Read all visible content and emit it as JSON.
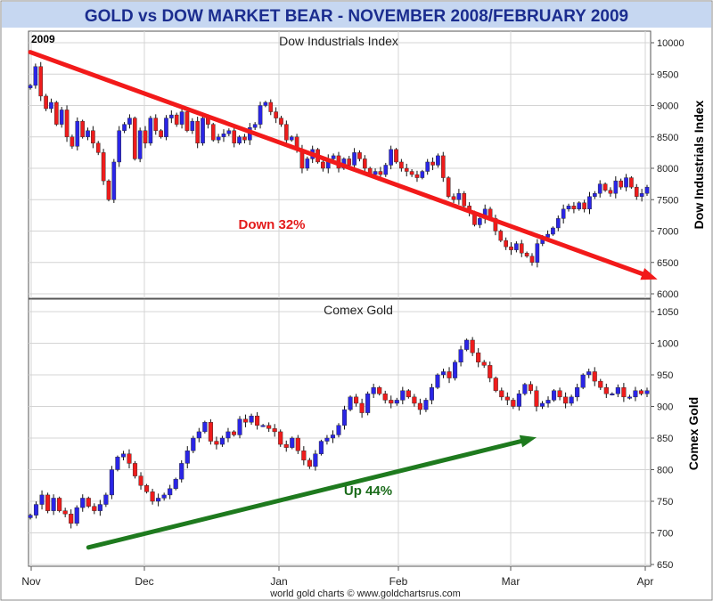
{
  "header": {
    "title": "GOLD vs DOW MARKET BEAR - NOVEMBER 2008/FEBRUARY 2009"
  },
  "footer": {
    "credit": "world gold charts © www.goldchartsrus.com"
  },
  "colors": {
    "title_bg": "#c6d7f1",
    "title_text": "#1b2d8f",
    "up_candle": "#2a25e6",
    "down_candle": "#ee1c1c",
    "dow_arrow": "#f21a1a",
    "gold_arrow": "#1e7a1e",
    "dow_annotation": "#e31b1b",
    "gold_annotation": "#1a6b1a"
  },
  "chart_data": [
    {
      "type": "candlestick",
      "title": "Dow Industrials Index",
      "year_label": "2009",
      "ylabel": "Dow Industrials Index",
      "ylim": [
        6000,
        10000
      ],
      "yticks": [
        "6000",
        "6500",
        "7000",
        "7500",
        "8000",
        "8500",
        "9000",
        "9500",
        "10000"
      ],
      "x_months": [
        "Nov",
        "Dec",
        "Jan",
        "Feb",
        "Mar",
        "Apr"
      ],
      "grid": true,
      "annotation": {
        "text": "Down 32%",
        "from": [
          0,
          9850
        ],
        "to": [
          120,
          6230
        ]
      },
      "closes": [
        9320,
        9620,
        9150,
        8950,
        9050,
        8700,
        8930,
        8500,
        8350,
        8750,
        8500,
        8600,
        8400,
        8250,
        7800,
        7500,
        8100,
        8600,
        8700,
        8800,
        8150,
        8600,
        8400,
        8800,
        8600,
        8500,
        8800,
        8850,
        8700,
        8900,
        8600,
        8750,
        8400,
        8800,
        8700,
        8450,
        8500,
        8550,
        8600,
        8400,
        8500,
        8450,
        8650,
        8700,
        9000,
        9050,
        8900,
        8800,
        8700,
        8450,
        8500,
        8300,
        8000,
        8150,
        8300,
        8100,
        8000,
        8150,
        8200,
        8000,
        8150,
        8050,
        8250,
        8150,
        8000,
        7900,
        7950,
        7900,
        8050,
        8300,
        8100,
        8000,
        7950,
        7900,
        7850,
        7950,
        8100,
        8050,
        8200,
        7850,
        7550,
        7500,
        7600,
        7400,
        7300,
        7100,
        7200,
        7350,
        7200,
        7000,
        6850,
        6750,
        6700,
        6800,
        6650,
        6600,
        6500,
        6800,
        6900,
        6950,
        7050,
        7200,
        7350,
        7400,
        7350,
        7450,
        7350,
        7550,
        7600,
        7750,
        7650,
        7600,
        7800,
        7700,
        7850,
        7700,
        7550,
        7600,
        7700
      ]
    },
    {
      "type": "candlestick",
      "title": "Comex Gold",
      "ylabel": "Comex Gold",
      "ylim": [
        650,
        1050
      ],
      "yticks": [
        "650",
        "700",
        "750",
        "800",
        "850",
        "900",
        "950",
        "1000",
        "1050"
      ],
      "x_months": [
        "Nov",
        "Dec",
        "Jan",
        "Feb",
        "Mar",
        "Apr"
      ],
      "grid": true,
      "annotation": {
        "text": "Up 44%",
        "from": [
          10,
          677
        ],
        "to": [
          87,
          851
        ]
      },
      "closes": [
        728,
        745,
        760,
        735,
        755,
        735,
        730,
        715,
        740,
        755,
        742,
        735,
        745,
        760,
        800,
        820,
        825,
        810,
        790,
        775,
        765,
        750,
        755,
        760,
        770,
        785,
        810,
        830,
        850,
        860,
        875,
        845,
        840,
        850,
        860,
        855,
        880,
        875,
        885,
        870,
        870,
        865,
        860,
        840,
        835,
        850,
        830,
        815,
        805,
        825,
        845,
        850,
        855,
        870,
        895,
        915,
        905,
        890,
        920,
        930,
        920,
        910,
        905,
        910,
        925,
        915,
        905,
        895,
        910,
        930,
        950,
        955,
        945,
        970,
        990,
        1005,
        985,
        970,
        965,
        945,
        925,
        915,
        910,
        900,
        920,
        935,
        925,
        900,
        905,
        910,
        925,
        915,
        905,
        915,
        930,
        950,
        955,
        940,
        930,
        920,
        920,
        930,
        915,
        915,
        925,
        920,
        925
      ]
    }
  ]
}
